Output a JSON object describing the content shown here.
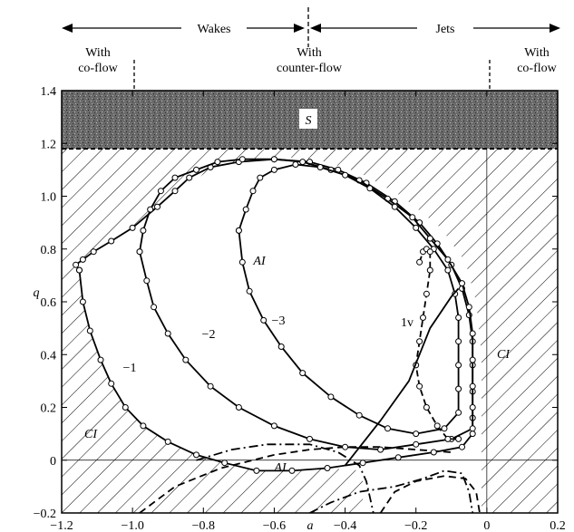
{
  "chart_data": {
    "type": "line",
    "xlabel": "a",
    "ylabel": "q",
    "xlim": [
      -1.2,
      0.2
    ],
    "ylim": [
      -0.2,
      1.4
    ],
    "x_ticks": [
      "-1.2",
      "-1.0",
      "-0.8",
      "-0.6",
      "-0.4",
      "-0.2",
      "0",
      "0.2"
    ],
    "y_ticks": [
      "-0.2",
      "0",
      "0.2",
      "0.4",
      "0.6",
      "0.8",
      "1.0",
      "1.2",
      "1.4"
    ],
    "grid": false,
    "top_labels": {
      "wakes": "Wakes",
      "jets": "Jets",
      "with_coflow_left": "With\nco-flow",
      "with_counterflow": "With\ncounter-flow",
      "with_coflow_right": "With\nco-flow"
    },
    "region_labels": {
      "S": "S",
      "AI_main": "AI",
      "AI_lower": "AI",
      "CI_left": "CI",
      "CI_right": "CI"
    },
    "curve_labels": [
      "−1",
      "−2",
      "−3",
      "1v"
    ],
    "series": [
      {
        "label": "−1",
        "points": [
          [
            -1.15,
            0.72
          ],
          [
            -1.16,
            0.74
          ],
          [
            -1.14,
            0.76
          ],
          [
            -1.11,
            0.79
          ],
          [
            -1.06,
            0.83
          ],
          [
            -1.0,
            0.88
          ],
          [
            -0.93,
            0.96
          ],
          [
            -0.88,
            1.02
          ],
          [
            -0.84,
            1.07
          ],
          [
            -0.78,
            1.11
          ],
          [
            -0.7,
            1.13
          ],
          [
            -0.6,
            1.14
          ],
          [
            -0.5,
            1.13
          ],
          [
            -0.42,
            1.1
          ],
          [
            -0.34,
            1.05
          ],
          [
            -0.26,
            0.98
          ],
          [
            -0.19,
            0.9
          ],
          [
            -0.14,
            0.82
          ],
          [
            -0.1,
            0.74
          ],
          [
            -0.07,
            0.65
          ],
          [
            -0.05,
            0.55
          ],
          [
            -0.04,
            0.45
          ],
          [
            -0.04,
            0.36
          ],
          [
            -0.04,
            0.26
          ],
          [
            -0.04,
            0.16
          ],
          [
            -0.04,
            0.1
          ],
          [
            -0.07,
            0.05
          ],
          [
            -0.15,
            0.03
          ],
          [
            -0.25,
            0.01
          ],
          [
            -0.35,
            -0.01
          ],
          [
            -0.45,
            -0.03
          ],
          [
            -0.55,
            -0.04
          ],
          [
            -0.65,
            -0.04
          ],
          [
            -0.74,
            -0.01
          ],
          [
            -0.82,
            0.02
          ],
          [
            -0.9,
            0.07
          ],
          [
            -0.97,
            0.13
          ],
          [
            -1.02,
            0.2
          ],
          [
            -1.06,
            0.29
          ],
          [
            -1.09,
            0.38
          ],
          [
            -1.12,
            0.49
          ],
          [
            -1.14,
            0.6
          ],
          [
            -1.15,
            0.72
          ]
        ]
      },
      {
        "label": "−2",
        "points": [
          [
            -0.98,
            0.79
          ],
          [
            -0.97,
            0.87
          ],
          [
            -0.95,
            0.95
          ],
          [
            -0.92,
            1.02
          ],
          [
            -0.88,
            1.07
          ],
          [
            -0.82,
            1.1
          ],
          [
            -0.76,
            1.13
          ],
          [
            -0.69,
            1.14
          ],
          [
            -0.6,
            1.14
          ],
          [
            -0.52,
            1.13
          ],
          [
            -0.44,
            1.1
          ],
          [
            -0.36,
            1.06
          ],
          [
            -0.28,
            0.99
          ],
          [
            -0.21,
            0.92
          ],
          [
            -0.16,
            0.84
          ],
          [
            -0.11,
            0.76
          ],
          [
            -0.07,
            0.67
          ],
          [
            -0.05,
            0.58
          ],
          [
            -0.04,
            0.48
          ],
          [
            -0.04,
            0.38
          ],
          [
            -0.04,
            0.28
          ],
          [
            -0.04,
            0.2
          ],
          [
            -0.04,
            0.12
          ],
          [
            -0.1,
            0.08
          ],
          [
            -0.2,
            0.06
          ],
          [
            -0.3,
            0.04
          ],
          [
            -0.4,
            0.05
          ],
          [
            -0.5,
            0.08
          ],
          [
            -0.6,
            0.13
          ],
          [
            -0.7,
            0.2
          ],
          [
            -0.78,
            0.28
          ],
          [
            -0.85,
            0.38
          ],
          [
            -0.9,
            0.48
          ],
          [
            -0.94,
            0.58
          ],
          [
            -0.96,
            0.68
          ],
          [
            -0.98,
            0.79
          ]
        ]
      },
      {
        "label": "−3",
        "points": [
          [
            -0.7,
            0.87
          ],
          [
            -0.68,
            0.95
          ],
          [
            -0.66,
            1.02
          ],
          [
            -0.64,
            1.07
          ],
          [
            -0.6,
            1.1
          ],
          [
            -0.54,
            1.12
          ],
          [
            -0.47,
            1.11
          ],
          [
            -0.4,
            1.08
          ],
          [
            -0.33,
            1.03
          ],
          [
            -0.26,
            0.96
          ],
          [
            -0.2,
            0.88
          ],
          [
            -0.15,
            0.8
          ],
          [
            -0.11,
            0.72
          ],
          [
            -0.09,
            0.63
          ],
          [
            -0.08,
            0.54
          ],
          [
            -0.08,
            0.45
          ],
          [
            -0.08,
            0.36
          ],
          [
            -0.08,
            0.27
          ],
          [
            -0.08,
            0.18
          ],
          [
            -0.12,
            0.12
          ],
          [
            -0.2,
            0.1
          ],
          [
            -0.28,
            0.12
          ],
          [
            -0.36,
            0.17
          ],
          [
            -0.44,
            0.24
          ],
          [
            -0.52,
            0.33
          ],
          [
            -0.58,
            0.43
          ],
          [
            -0.63,
            0.53
          ],
          [
            -0.67,
            0.64
          ],
          [
            -0.69,
            0.75
          ],
          [
            -0.7,
            0.87
          ]
        ]
      },
      {
        "label": "1v",
        "points": [
          [
            -0.19,
            0.75
          ],
          [
            -0.18,
            0.79
          ],
          [
            -0.17,
            0.8
          ],
          [
            -0.16,
            0.79
          ],
          [
            -0.16,
            0.72
          ],
          [
            -0.17,
            0.63
          ],
          [
            -0.18,
            0.54
          ],
          [
            -0.19,
            0.45
          ],
          [
            -0.2,
            0.36
          ],
          [
            -0.19,
            0.28
          ],
          [
            -0.17,
            0.2
          ],
          [
            -0.14,
            0.13
          ],
          [
            -0.11,
            0.08
          ],
          [
            -0.08,
            0.08
          ]
        ]
      }
    ]
  }
}
